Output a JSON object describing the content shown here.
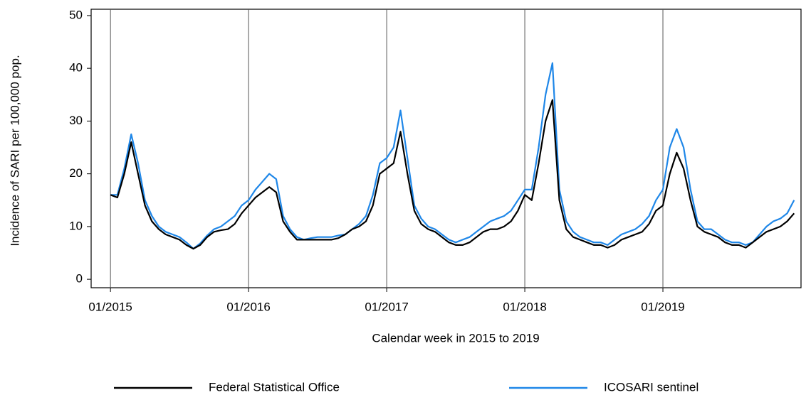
{
  "chart_data": {
    "type": "line",
    "xlabel": "Calendar week in 2015 to 2019",
    "ylabel": "Incidence of SARI per 100,000 pop.",
    "xlim": [
      2014.86,
      2020.0
    ],
    "ylim": [
      -1.6,
      51.2
    ],
    "xticks": [
      {
        "value": 2015,
        "label": "01/2015"
      },
      {
        "value": 2016,
        "label": "01/2016"
      },
      {
        "value": 2017,
        "label": "01/2017"
      },
      {
        "value": 2018,
        "label": "01/2018"
      },
      {
        "value": 2019,
        "label": "01/2019"
      }
    ],
    "yticks": [
      0,
      10,
      20,
      30,
      40,
      50
    ],
    "grid": true,
    "legend": "bottom",
    "x": [
      2015.0,
      2015.05,
      2015.1,
      2015.15,
      2015.2,
      2015.25,
      2015.3,
      2015.35,
      2015.4,
      2015.45,
      2015.5,
      2015.55,
      2015.6,
      2015.65,
      2015.7,
      2015.75,
      2015.8,
      2015.85,
      2015.9,
      2015.95,
      2016.0,
      2016.05,
      2016.1,
      2016.15,
      2016.2,
      2016.25,
      2016.3,
      2016.35,
      2016.4,
      2016.45,
      2016.5,
      2016.55,
      2016.6,
      2016.65,
      2016.7,
      2016.75,
      2016.8,
      2016.85,
      2016.9,
      2016.95,
      2017.0,
      2017.05,
      2017.1,
      2017.15,
      2017.2,
      2017.25,
      2017.3,
      2017.35,
      2017.4,
      2017.45,
      2017.5,
      2017.55,
      2017.6,
      2017.65,
      2017.7,
      2017.75,
      2017.8,
      2017.85,
      2017.9,
      2017.95,
      2018.0,
      2018.05,
      2018.1,
      2018.15,
      2018.2,
      2018.25,
      2018.3,
      2018.35,
      2018.4,
      2018.45,
      2018.5,
      2018.55,
      2018.6,
      2018.65,
      2018.7,
      2018.75,
      2018.8,
      2018.85,
      2018.9,
      2018.95,
      2019.0,
      2019.05,
      2019.1,
      2019.15,
      2019.2,
      2019.25,
      2019.3,
      2019.35,
      2019.4,
      2019.45,
      2019.5,
      2019.55,
      2019.6,
      2019.65,
      2019.7,
      2019.75,
      2019.8,
      2019.85,
      2019.9,
      2019.95
    ],
    "series": [
      {
        "name": "Federal Statistical Office",
        "color": "#000000",
        "values": [
          16,
          15.5,
          20,
          26,
          20,
          14,
          11,
          9.5,
          8.5,
          8,
          7.5,
          6.5,
          5.8,
          6.5,
          8,
          9,
          9.3,
          9.5,
          10.5,
          12.5,
          14,
          15.5,
          16.5,
          17.5,
          16.5,
          11,
          9,
          7.5,
          7.5,
          7.5,
          7.5,
          7.5,
          7.5,
          7.8,
          8.5,
          9.5,
          10,
          11,
          14,
          20,
          21,
          22,
          28,
          20,
          13,
          10.5,
          9.5,
          9,
          8,
          7,
          6.5,
          6.5,
          7,
          8,
          9,
          9.5,
          9.5,
          10,
          11,
          13,
          16,
          15,
          22,
          30,
          34,
          15,
          9.5,
          8,
          7.5,
          7,
          6.5,
          6.5,
          6,
          6.5,
          7.5,
          8,
          8.5,
          9,
          10.5,
          13,
          14,
          20,
          24,
          21,
          15,
          10,
          9,
          8.5,
          8,
          7,
          6.5,
          6.5,
          6,
          7,
          8,
          9,
          9.5,
          10,
          11,
          12.5
        ]
      },
      {
        "name": "ICOSARI sentinel",
        "color": "#1f87e8",
        "values": [
          16,
          16,
          21,
          27.5,
          22,
          15,
          12,
          10,
          9,
          8.5,
          8,
          7,
          5.8,
          6.8,
          8.3,
          9.5,
          10,
          11,
          12,
          14,
          15,
          17,
          18.5,
          20,
          19,
          12,
          9.5,
          8,
          7.5,
          7.8,
          8,
          8,
          8,
          8.3,
          8.5,
          9.5,
          10.5,
          12,
          16,
          22,
          23,
          25,
          32,
          23,
          14,
          11.5,
          10,
          9.5,
          8.5,
          7.5,
          7,
          7.5,
          8,
          9,
          10,
          11,
          11.5,
          12,
          13,
          15,
          17,
          17,
          25,
          35,
          41,
          17,
          11,
          9,
          8,
          7.5,
          7,
          7,
          6.5,
          7.5,
          8.5,
          9,
          9.5,
          10.5,
          12,
          15,
          17,
          25,
          28.5,
          25,
          17,
          11,
          9.5,
          9.5,
          8.5,
          7.5,
          7,
          7,
          6.5,
          7,
          8.5,
          10,
          11,
          11.5,
          12.5,
          15
        ]
      }
    ]
  }
}
